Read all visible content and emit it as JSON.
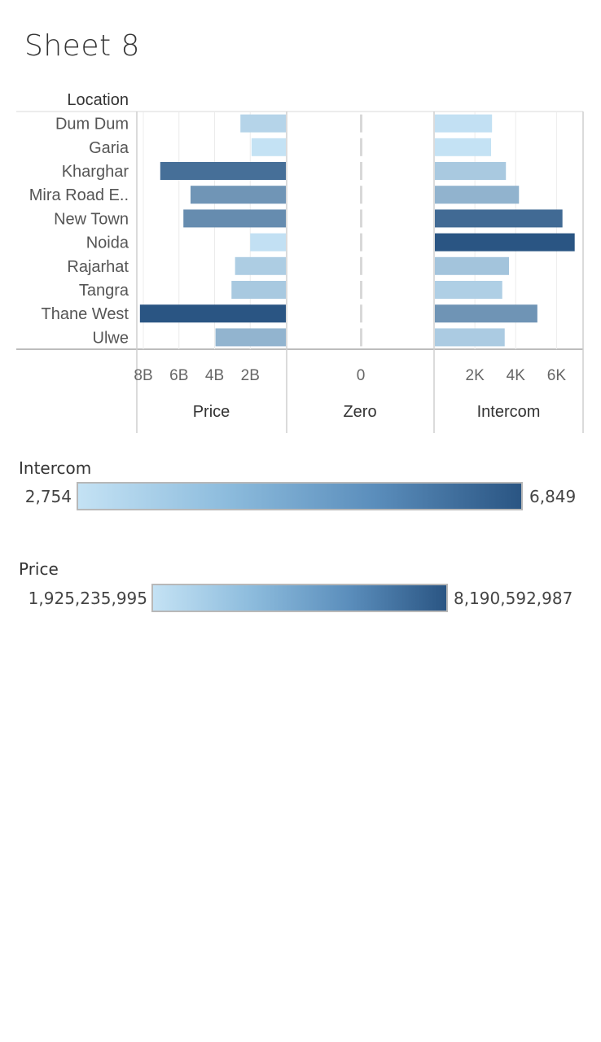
{
  "page": {
    "title": "Sheet 8"
  },
  "chart_data": {
    "type": "bar",
    "row_header": "Location",
    "categories": [
      "Dum Dum",
      "Garia",
      "Kharghar",
      "Mira Road E..",
      "New Town",
      "Noida",
      "Rajarhat",
      "Tangra",
      "Thane West",
      "Ulwe"
    ],
    "panels": [
      {
        "name": "Price",
        "orientation": "reversed",
        "values": [
          2550000000,
          1925235995,
          7050000000,
          5350000000,
          5750000000,
          2000000000,
          2850000000,
          3050000000,
          8190592987,
          3950000000
        ],
        "xlim": [
          0,
          8300000000
        ],
        "ticks": [
          8000000000,
          6000000000,
          4000000000,
          2000000000
        ],
        "tick_labels": [
          "8B",
          "6B",
          "4B",
          "2B"
        ]
      },
      {
        "name": "Zero",
        "values": [
          0,
          0,
          0,
          0,
          0,
          0,
          0,
          0,
          0,
          0
        ],
        "ticks": [
          0
        ],
        "tick_labels": [
          "0"
        ]
      },
      {
        "name": "Intercom",
        "values": [
          2800,
          2754,
          3480,
          4120,
          6250,
          6849,
          3630,
          3300,
          5020,
          3420
        ],
        "xlim": [
          0,
          7300
        ],
        "ticks": [
          2000,
          4000,
          6000
        ],
        "tick_labels": [
          "2K",
          "4K",
          "6K"
        ]
      }
    ],
    "color_scale": [
      "#c4e2f4",
      "#2a5583"
    ]
  },
  "legends": {
    "intercom": {
      "title": "Intercom",
      "min_label": "2,754",
      "max_label": "6,849"
    },
    "price": {
      "title": "Price",
      "min_label": "1,925,235,995",
      "max_label": "8,190,592,987"
    }
  }
}
